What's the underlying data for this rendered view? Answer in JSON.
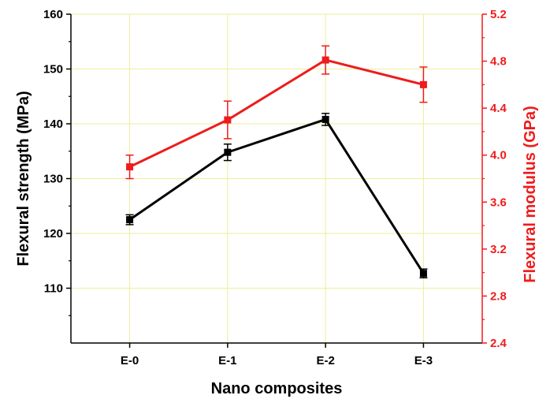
{
  "chart_data": {
    "type": "line",
    "xlabel": "Nano composites",
    "ylabel_left": "Flexural strength (MPa)",
    "ylabel_right": "Flexural modulus (GPa)",
    "categories": [
      "E-0",
      "E-1",
      "E-2",
      "E-3"
    ],
    "y_left": {
      "lim": [
        100,
        160
      ],
      "ticks": [
        "110",
        "120",
        "130",
        "140",
        "150",
        "160"
      ]
    },
    "y_right": {
      "lim": [
        2.4,
        5.2
      ],
      "ticks": [
        "2.4",
        "2.8",
        "3.2",
        "3.6",
        "4.0",
        "4.4",
        "4.8",
        "5.2"
      ]
    },
    "grid": true,
    "series": [
      {
        "axis": "left",
        "color": "#000000",
        "marker": "square",
        "values": [
          122.5,
          134.8,
          140.8,
          112.7
        ],
        "errors": [
          0.9,
          1.5,
          1.1,
          0.8
        ]
      },
      {
        "axis": "right",
        "color": "#ee1c1c",
        "marker": "square",
        "values": [
          3.9,
          4.3,
          4.81,
          4.6
        ],
        "errors": [
          0.1,
          0.16,
          0.12,
          0.15
        ]
      }
    ]
  }
}
